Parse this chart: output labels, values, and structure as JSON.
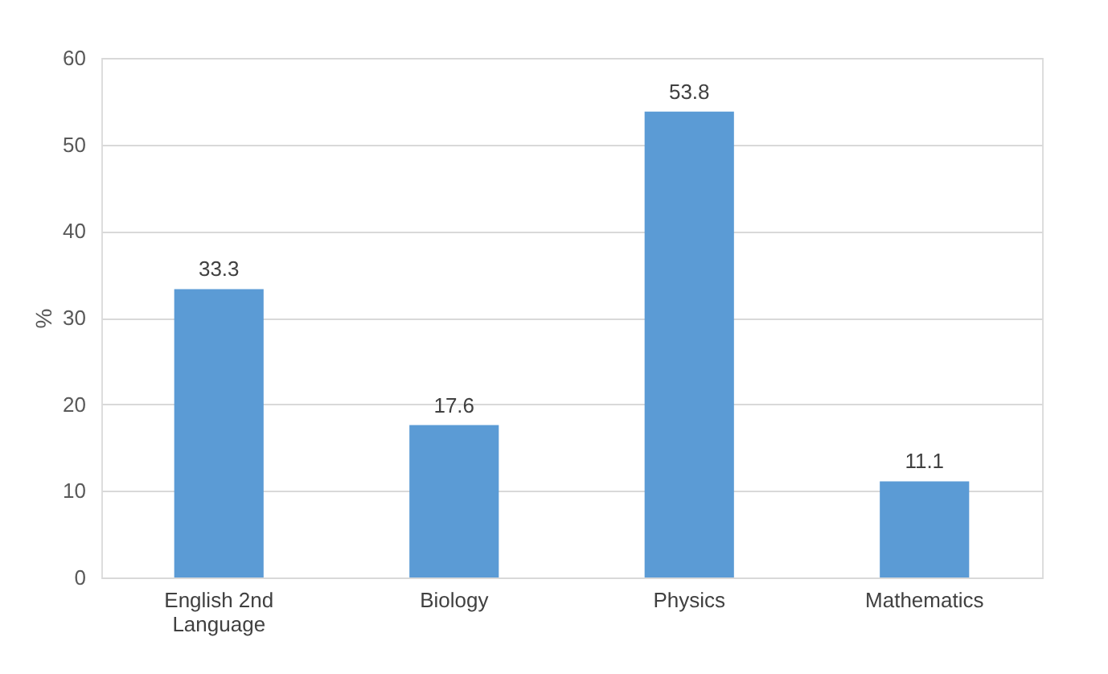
{
  "chart_data": {
    "type": "bar",
    "ylabel": "%",
    "categories": [
      "English 2nd Language",
      "Biology",
      "Physics",
      "Mathematics"
    ],
    "values": [
      33.3,
      17.6,
      53.8,
      11.1
    ],
    "color": "#5b9bd5",
    "ylim": [
      0,
      60
    ],
    "yticks": [
      0,
      10,
      20,
      30,
      40,
      50,
      60
    ],
    "grid": "y",
    "data_labels": true
  }
}
